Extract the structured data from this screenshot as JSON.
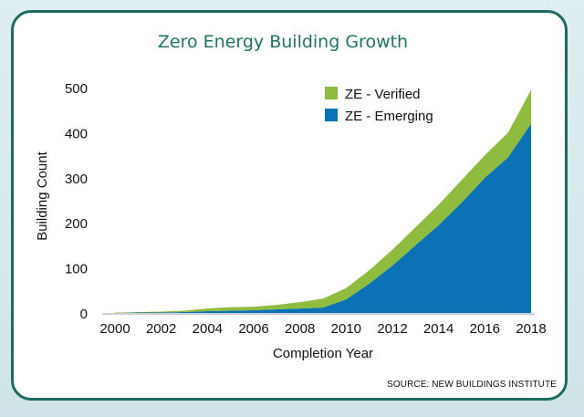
{
  "chart_data": {
    "type": "area",
    "title": "Zero Energy Building Growth",
    "xlabel": "Completion Year",
    "ylabel": "Building Count",
    "ylim": [
      0,
      500
    ],
    "xlim": [
      2000,
      2018
    ],
    "x_ticks": [
      "2000",
      "2002",
      "2004",
      "2006",
      "2008",
      "2010",
      "2012",
      "2014",
      "2016",
      "2018"
    ],
    "y_ticks": [
      "500",
      "400",
      "300",
      "200",
      "100",
      "0"
    ],
    "legend_position": "top-right",
    "grid": false,
    "x": [
      2000,
      2001,
      2002,
      2003,
      2004,
      2005,
      2006,
      2007,
      2008,
      2009,
      2010,
      2011,
      2012,
      2013,
      2014,
      2015,
      2016,
      2017,
      2018
    ],
    "series": [
      {
        "name": "ZE - Emerging",
        "color": "#0a72b5",
        "values": [
          0,
          1,
          1,
          2,
          4,
          5,
          6,
          8,
          10,
          12,
          30,
          65,
          105,
          150,
          195,
          245,
          300,
          345,
          420
        ]
      },
      {
        "name": "ZE - Verified",
        "color": "#8fbb3f",
        "values": [
          1,
          1,
          2,
          3,
          6,
          8,
          8,
          10,
          14,
          20,
          25,
          30,
          35,
          40,
          45,
          50,
          50,
          55,
          75
        ]
      }
    ],
    "legend": [
      "ZE - Verified",
      "ZE - Emerging"
    ]
  },
  "source": "SOURCE: NEW BUILDINGS INSTITUTE"
}
